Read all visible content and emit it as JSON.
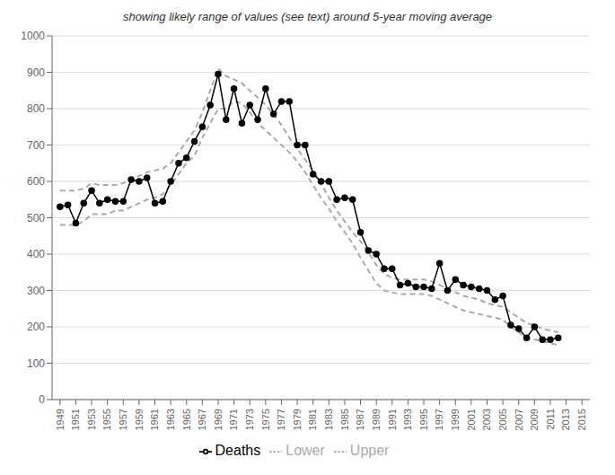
{
  "chart_data": {
    "type": "line",
    "subtitle": "showing likely range of values (see text) around 5-year moving average",
    "x": [
      1949,
      1950,
      1951,
      1952,
      1953,
      1954,
      1955,
      1956,
      1957,
      1958,
      1959,
      1960,
      1961,
      1962,
      1963,
      1964,
      1965,
      1966,
      1967,
      1968,
      1969,
      1970,
      1971,
      1972,
      1973,
      1974,
      1975,
      1976,
      1977,
      1978,
      1979,
      1980,
      1981,
      1982,
      1983,
      1984,
      1985,
      1986,
      1987,
      1988,
      1989,
      1990,
      1991,
      1992,
      1993,
      1994,
      1995,
      1996,
      1997,
      1998,
      1999,
      2000,
      2001,
      2002,
      2003,
      2004,
      2005,
      2006,
      2007,
      2008,
      2009,
      2010,
      2011,
      2012
    ],
    "series": [
      {
        "name": "Lower",
        "color": "#aaaaaa",
        "line_style": "dashed",
        "values": [
          480,
          480,
          480,
          490,
          510,
          510,
          510,
          520,
          520,
          530,
          540,
          550,
          555,
          565,
          590,
          620,
          650,
          670,
          720,
          760,
          800,
          800,
          820,
          815,
          790,
          760,
          740,
          720,
          700,
          680,
          655,
          625,
          590,
          555,
          525,
          490,
          460,
          430,
          390,
          355,
          320,
          300,
          295,
          290,
          290,
          290,
          290,
          285,
          275,
          265,
          255,
          245,
          240,
          235,
          230,
          225,
          220,
          200,
          185,
          170,
          165,
          160,
          155,
          150
        ]
      },
      {
        "name": "Upper",
        "color": "#aaaaaa",
        "line_style": "dashed",
        "values": [
          575,
          575,
          575,
          580,
          595,
          590,
          590,
          590,
          595,
          605,
          615,
          625,
          630,
          635,
          650,
          680,
          710,
          740,
          790,
          850,
          910,
          890,
          880,
          870,
          850,
          830,
          810,
          785,
          755,
          720,
          690,
          660,
          630,
          595,
          555,
          520,
          490,
          460,
          435,
          405,
          370,
          345,
          335,
          330,
          330,
          330,
          330,
          325,
          315,
          305,
          295,
          285,
          280,
          275,
          265,
          260,
          255,
          240,
          225,
          210,
          205,
          195,
          190,
          185
        ]
      },
      {
        "name": "Deaths",
        "color": "#000000",
        "line_style": "solid",
        "marker": "circle",
        "values": [
          530,
          535,
          485,
          540,
          575,
          540,
          550,
          545,
          545,
          605,
          600,
          610,
          540,
          545,
          600,
          650,
          665,
          710,
          750,
          810,
          895,
          770,
          855,
          760,
          810,
          770,
          855,
          785,
          820,
          820,
          700,
          700,
          620,
          600,
          600,
          550,
          555,
          550,
          460,
          410,
          400,
          360,
          360,
          315,
          320,
          310,
          310,
          305,
          375,
          300,
          330,
          315,
          310,
          305,
          300,
          275,
          285,
          205,
          195,
          170,
          200,
          165,
          165,
          170
        ]
      }
    ],
    "xlim": [
      1948,
      2016
    ],
    "xticks": [
      1949,
      1951,
      1953,
      1955,
      1957,
      1959,
      1961,
      1963,
      1965,
      1967,
      1969,
      1971,
      1973,
      1975,
      1977,
      1979,
      1981,
      1983,
      1985,
      1987,
      1989,
      1991,
      1993,
      1995,
      1997,
      1999,
      2001,
      2003,
      2005,
      2007,
      2009,
      2011,
      2013,
      2015
    ],
    "ylim": [
      0,
      1000
    ],
    "yticks": [
      0,
      100,
      200,
      300,
      400,
      500,
      600,
      700,
      800,
      900,
      1000
    ],
    "grid": true,
    "legend": "bottom"
  }
}
